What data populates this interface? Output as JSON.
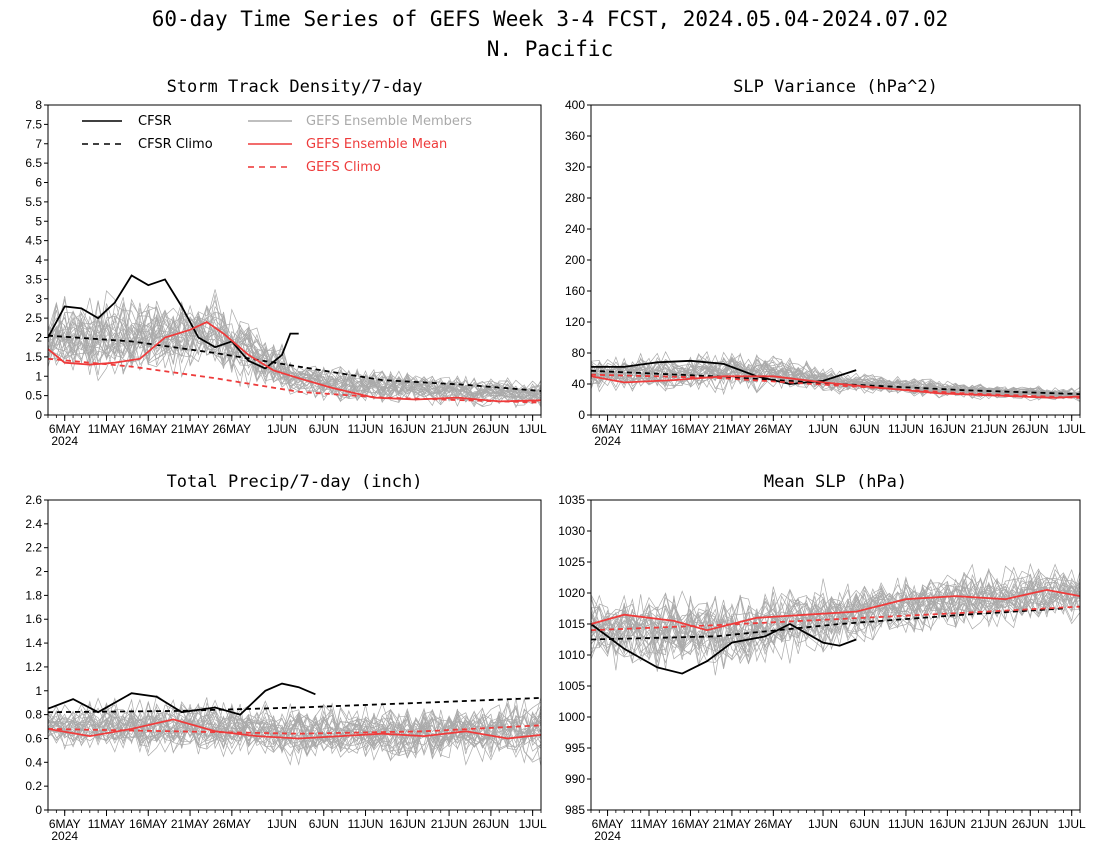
{
  "title_line1": "60-day Time Series of GEFS Week 3-4 FCST, 2024.05.04-2024.07.02",
  "title_line2": "N. Pacific",
  "colors": {
    "cfsr": "#000000",
    "members": "#aaaaaa",
    "ens_mean": "#ee3b3b",
    "gefs_climo": "#ee3b3b"
  },
  "x_ticks": [
    "6MAY",
    "11MAY",
    "16MAY",
    "21MAY",
    "26MAY",
    "1JUN",
    "6JUN",
    "11JUN",
    "16JUN",
    "21JUN",
    "26JUN",
    "1JUL"
  ],
  "x_year": "2024",
  "legend": {
    "cfsr": "CFSR",
    "cfsr_climo": "CFSR Climo",
    "members": "GEFS Ensemble Members",
    "ens_mean": "GEFS Ensemble Mean",
    "gefs_climo": "GEFS Climo"
  },
  "chart_data": [
    {
      "type": "line",
      "title": "Storm Track Density/7-day",
      "ylim": [
        0,
        8
      ],
      "yticks": [
        "0",
        "0.5",
        "1",
        "1.5",
        "2",
        "2.5",
        "3",
        "3.5",
        "4",
        "4.5",
        "5",
        "5.5",
        "6",
        "6.5",
        "7",
        "7.5",
        "8"
      ],
      "x_start": "2024-05-04",
      "x_end": "2024-07-02",
      "series": [
        {
          "name": "CFSR",
          "style": "solid",
          "color": "#000000",
          "x": [
            "2024-05-04",
            "2024-05-06",
            "2024-05-08",
            "2024-05-10",
            "2024-05-12",
            "2024-05-14",
            "2024-05-16",
            "2024-05-18",
            "2024-05-20",
            "2024-05-22",
            "2024-05-24",
            "2024-05-26",
            "2024-05-28",
            "2024-05-30",
            "2024-06-01",
            "2024-06-02",
            "2024-06-03"
          ],
          "y": [
            2.0,
            2.8,
            2.75,
            2.5,
            2.9,
            3.6,
            3.35,
            3.5,
            2.8,
            2.0,
            1.75,
            1.9,
            1.4,
            1.2,
            1.55,
            2.1,
            2.1
          ]
        },
        {
          "name": "CFSR Climo",
          "style": "dashed",
          "color": "#000000",
          "x": [
            "2024-05-04",
            "2024-05-14",
            "2024-05-24",
            "2024-06-03",
            "2024-06-13",
            "2024-06-23",
            "2024-07-02"
          ],
          "y": [
            2.05,
            1.9,
            1.6,
            1.25,
            0.9,
            0.78,
            0.62
          ]
        },
        {
          "name": "GEFS Ensemble Mean",
          "style": "solid",
          "color": "#ee3b3b",
          "x": [
            "2024-05-04",
            "2024-05-06",
            "2024-05-09",
            "2024-05-12",
            "2024-05-15",
            "2024-05-18",
            "2024-05-21",
            "2024-05-23",
            "2024-05-25",
            "2024-05-28",
            "2024-05-31",
            "2024-06-03",
            "2024-06-07",
            "2024-06-12",
            "2024-06-17",
            "2024-06-22",
            "2024-06-27",
            "2024-07-02"
          ],
          "y": [
            1.7,
            1.35,
            1.3,
            1.35,
            1.45,
            2.0,
            2.2,
            2.4,
            2.1,
            1.55,
            1.15,
            0.95,
            0.7,
            0.45,
            0.4,
            0.45,
            0.35,
            0.38
          ]
        },
        {
          "name": "GEFS Climo",
          "style": "dashed",
          "color": "#ee3b3b",
          "x": [
            "2024-05-04",
            "2024-05-14",
            "2024-05-24",
            "2024-06-03",
            "2024-06-13",
            "2024-06-23",
            "2024-07-02"
          ],
          "y": [
            1.45,
            1.25,
            0.95,
            0.6,
            0.45,
            0.38,
            0.32
          ]
        }
      ],
      "members_envelope": {
        "x": [
          "2024-05-04",
          "2024-05-24",
          "2024-06-03",
          "2024-06-23",
          "2024-07-02"
        ],
        "low": [
          0.7,
          0.8,
          0.25,
          0.1,
          0.05
        ],
        "high": [
          3.2,
          3.5,
          1.6,
          1.1,
          1.0
        ]
      }
    },
    {
      "type": "line",
      "title": "SLP Variance (hPa^2)",
      "ylim": [
        0,
        400
      ],
      "yticks": [
        "0",
        "40",
        "80",
        "120",
        "160",
        "200",
        "240",
        "280",
        "320",
        "360",
        "400"
      ],
      "x_start": "2024-05-04",
      "x_end": "2024-07-02",
      "series": [
        {
          "name": "CFSR",
          "style": "solid",
          "color": "#000000",
          "x": [
            "2024-05-04",
            "2024-05-08",
            "2024-05-12",
            "2024-05-16",
            "2024-05-20",
            "2024-05-24",
            "2024-05-28",
            "2024-06-01",
            "2024-06-05"
          ],
          "y": [
            62,
            62,
            68,
            70,
            66,
            50,
            40,
            44,
            58
          ]
        },
        {
          "name": "CFSR Climo",
          "style": "dashed",
          "color": "#000000",
          "x": [
            "2024-05-04",
            "2024-05-19",
            "2024-06-03",
            "2024-06-18",
            "2024-07-02"
          ],
          "y": [
            57,
            50,
            40,
            32,
            27
          ]
        },
        {
          "name": "GEFS Ensemble Mean",
          "style": "solid",
          "color": "#ee3b3b",
          "x": [
            "2024-05-04",
            "2024-05-08",
            "2024-05-14",
            "2024-05-20",
            "2024-05-26",
            "2024-06-01",
            "2024-06-08",
            "2024-06-15",
            "2024-06-22",
            "2024-06-29",
            "2024-07-02"
          ],
          "y": [
            50,
            42,
            45,
            50,
            50,
            42,
            35,
            28,
            25,
            22,
            24
          ]
        },
        {
          "name": "GEFS Climo",
          "style": "dashed",
          "color": "#ee3b3b",
          "x": [
            "2024-05-04",
            "2024-05-19",
            "2024-06-03",
            "2024-06-18",
            "2024-07-02"
          ],
          "y": [
            52,
            48,
            38,
            28,
            22
          ]
        }
      ],
      "members_envelope": {
        "x": [
          "2024-05-04",
          "2024-05-24",
          "2024-06-03",
          "2024-06-23",
          "2024-07-02"
        ],
        "low": [
          25,
          25,
          25,
          18,
          15
        ],
        "high": [
          80,
          90,
          60,
          40,
          38
        ]
      }
    },
    {
      "type": "line",
      "title": "Total Precip/7-day (inch)",
      "ylim": [
        0,
        2.6
      ],
      "yticks": [
        "0",
        "0.2",
        "0.4",
        "0.6",
        "0.8",
        "1",
        "1.2",
        "1.4",
        "1.6",
        "1.8",
        "2",
        "2.2",
        "2.4",
        "2.6"
      ],
      "x_start": "2024-05-04",
      "x_end": "2024-07-02",
      "series": [
        {
          "name": "CFSR",
          "style": "solid",
          "color": "#000000",
          "x": [
            "2024-05-04",
            "2024-05-07",
            "2024-05-10",
            "2024-05-14",
            "2024-05-17",
            "2024-05-20",
            "2024-05-24",
            "2024-05-27",
            "2024-05-30",
            "2024-06-01",
            "2024-06-03",
            "2024-06-05"
          ],
          "y": [
            0.85,
            0.93,
            0.82,
            0.98,
            0.95,
            0.82,
            0.86,
            0.8,
            1.0,
            1.06,
            1.03,
            0.97
          ]
        },
        {
          "name": "CFSR Climo",
          "style": "dashed",
          "color": "#000000",
          "x": [
            "2024-05-04",
            "2024-05-19",
            "2024-06-03",
            "2024-06-18",
            "2024-07-02"
          ],
          "y": [
            0.82,
            0.83,
            0.86,
            0.9,
            0.94
          ]
        },
        {
          "name": "GEFS Ensemble Mean",
          "style": "solid",
          "color": "#ee3b3b",
          "x": [
            "2024-05-04",
            "2024-05-09",
            "2024-05-14",
            "2024-05-19",
            "2024-05-24",
            "2024-05-29",
            "2024-06-03",
            "2024-06-08",
            "2024-06-13",
            "2024-06-18",
            "2024-06-23",
            "2024-06-28",
            "2024-07-02"
          ],
          "y": [
            0.68,
            0.62,
            0.68,
            0.76,
            0.66,
            0.62,
            0.6,
            0.62,
            0.64,
            0.62,
            0.66,
            0.6,
            0.63
          ]
        },
        {
          "name": "GEFS Climo",
          "style": "dashed",
          "color": "#ee3b3b",
          "x": [
            "2024-05-04",
            "2024-05-19",
            "2024-06-03",
            "2024-06-18",
            "2024-07-02"
          ],
          "y": [
            0.68,
            0.66,
            0.64,
            0.66,
            0.71
          ]
        }
      ],
      "members_envelope": {
        "x": [
          "2024-05-04",
          "2024-05-24",
          "2024-06-03",
          "2024-06-23",
          "2024-07-02"
        ],
        "low": [
          0.45,
          0.4,
          0.35,
          0.35,
          0.3
        ],
        "high": [
          0.95,
          1.0,
          0.95,
          0.95,
          1.05
        ]
      }
    },
    {
      "type": "line",
      "title": "Mean SLP (hPa)",
      "ylim": [
        985,
        1035
      ],
      "yticks": [
        "985",
        "990",
        "995",
        "1000",
        "1005",
        "1010",
        "1015",
        "1020",
        "1025",
        "1030",
        "1035"
      ],
      "x_start": "2024-05-04",
      "x_end": "2024-07-02",
      "series": [
        {
          "name": "CFSR",
          "style": "solid",
          "color": "#000000",
          "x": [
            "2024-05-04",
            "2024-05-08",
            "2024-05-12",
            "2024-05-15",
            "2024-05-18",
            "2024-05-21",
            "2024-05-25",
            "2024-05-28",
            "2024-06-01",
            "2024-06-03",
            "2024-06-05"
          ],
          "y": [
            1015,
            1011,
            1008,
            1007,
            1009,
            1012,
            1013,
            1015,
            1012,
            1011.5,
            1012.5
          ]
        },
        {
          "name": "CFSR Climo",
          "style": "dashed",
          "color": "#000000",
          "x": [
            "2024-05-04",
            "2024-05-19",
            "2024-06-03",
            "2024-06-18",
            "2024-06-30"
          ],
          "y": [
            1012.5,
            1013,
            1015,
            1016.5,
            1017.5
          ]
        },
        {
          "name": "GEFS Ensemble Mean",
          "style": "solid",
          "color": "#ee3b3b",
          "x": [
            "2024-05-04",
            "2024-05-08",
            "2024-05-14",
            "2024-05-18",
            "2024-05-24",
            "2024-05-30",
            "2024-06-05",
            "2024-06-11",
            "2024-06-17",
            "2024-06-23",
            "2024-06-28",
            "2024-07-02"
          ],
          "y": [
            1015,
            1016.5,
            1015.5,
            1014,
            1016,
            1016.5,
            1017,
            1019,
            1019.5,
            1019,
            1020.5,
            1019.5
          ]
        },
        {
          "name": "GEFS Climo",
          "style": "dashed",
          "color": "#ee3b3b",
          "x": [
            "2024-05-04",
            "2024-05-19",
            "2024-06-03",
            "2024-06-18",
            "2024-07-02"
          ],
          "y": [
            1014,
            1014.8,
            1015.8,
            1016.8,
            1017.8
          ]
        }
      ],
      "members_envelope": {
        "x": [
          "2024-05-04",
          "2024-05-19",
          "2024-06-03",
          "2024-06-18",
          "2024-07-02"
        ],
        "low": [
          1007,
          1005,
          1010,
          1013,
          1014
        ],
        "high": [
          1022,
          1022,
          1023,
          1025,
          1026
        ]
      }
    }
  ]
}
